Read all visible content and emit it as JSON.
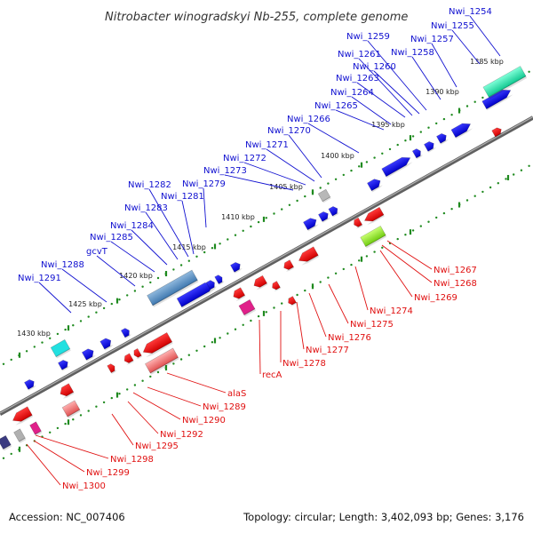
{
  "title": "Nitrobacter winogradskyi Nb-255, complete genome",
  "footer": {
    "accession": "Accession: NC_007406",
    "topology": "Topology: circular; Length: 3,402,093 bp; Genes: 3,176"
  },
  "colors": {
    "forward_label": "#1010d0",
    "reverse_label": "#e01010",
    "forward_gene": "#0a0ae0",
    "reverse_gene": "#ee0a0a",
    "backbone": "#808080",
    "tick": "#1f8a1f"
  },
  "kbp_ticks": [
    {
      "label": "1385 kbp"
    },
    {
      "label": "1390 kbp"
    },
    {
      "label": "1395 kbp"
    },
    {
      "label": "1400 kbp"
    },
    {
      "label": "1405 kbp"
    },
    {
      "label": "1410 kbp"
    },
    {
      "label": "1415 kbp"
    },
    {
      "label": "1420 kbp"
    },
    {
      "label": "1425 kbp"
    },
    {
      "label": "1430 kbp"
    }
  ],
  "forward_genes": [
    "Nwi_1254",
    "Nwi_1255",
    "Nwi_1257",
    "Nwi_1258",
    "Nwi_1259",
    "Nwi_1260",
    "Nwi_1261",
    "Nwi_1263",
    "Nwi_1264",
    "Nwi_1265",
    "Nwi_1266",
    "Nwi_1270",
    "Nwi_1271",
    "Nwi_1272",
    "Nwi_1273",
    "Nwi_1279",
    "Nwi_1281",
    "Nwi_1282",
    "Nwi_1283",
    "Nwi_1284",
    "Nwi_1285",
    "gcvT",
    "Nwi_1288",
    "Nwi_1291"
  ],
  "reverse_genes": [
    "Nwi_1267",
    "Nwi_1268",
    "Nwi_1269",
    "Nwi_1274",
    "Nwi_1275",
    "Nwi_1276",
    "Nwi_1277",
    "Nwi_1278",
    "recA",
    "alaS",
    "Nwi_1289",
    "Nwi_1290",
    "Nwi_1292",
    "Nwi_1295",
    "Nwi_1298",
    "Nwi_1299",
    "Nwi_1300"
  ]
}
